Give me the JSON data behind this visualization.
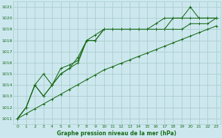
{
  "bg_color": "#cce8ee",
  "grid_color": "#aacccc",
  "line_color": "#1a6b1a",
  "xlabel": "Graphe pression niveau de la mer (hPa)",
  "xlim": [
    -0.5,
    23.5
  ],
  "ylim": [
    1010.5,
    1021.5
  ],
  "yticks": [
    1011,
    1012,
    1013,
    1014,
    1015,
    1016,
    1017,
    1018,
    1019,
    1020,
    1021
  ],
  "xticks": [
    0,
    1,
    2,
    3,
    4,
    5,
    6,
    7,
    8,
    9,
    10,
    11,
    12,
    13,
    14,
    15,
    16,
    17,
    18,
    19,
    20,
    21,
    22,
    23
  ],
  "series": [
    {
      "x": [
        0,
        1,
        2,
        3,
        4,
        5,
        6,
        7,
        8,
        9,
        10,
        11,
        12,
        13,
        14,
        15,
        16,
        17,
        18,
        19,
        20,
        21,
        22,
        23
      ],
      "y": [
        1011,
        1011.43,
        1011.87,
        1012.3,
        1012.74,
        1013.17,
        1013.61,
        1014.04,
        1014.48,
        1014.91,
        1015.35,
        1015.65,
        1015.96,
        1016.26,
        1016.57,
        1016.87,
        1017.17,
        1017.48,
        1017.78,
        1018.09,
        1018.39,
        1018.7,
        1019.0,
        1019.3
      ]
    },
    {
      "x": [
        0,
        1,
        2,
        3,
        4,
        5,
        6,
        7,
        8,
        9,
        10,
        11,
        12,
        13,
        14,
        15,
        16,
        17,
        18,
        19,
        20,
        21,
        22,
        23
      ],
      "y": [
        1011,
        1012,
        1014,
        1013,
        1014,
        1015,
        1015.5,
        1016,
        1018,
        1018,
        1019,
        1019,
        1019,
        1019,
        1019,
        1019,
        1019,
        1019,
        1020,
        1020,
        1021,
        1020,
        1020,
        1020
      ]
    },
    {
      "x": [
        0,
        1,
        2,
        3,
        4,
        5,
        6,
        7,
        8,
        9,
        10,
        11,
        12,
        13,
        14,
        15,
        16,
        17,
        18,
        19,
        20,
        21,
        22,
        23
      ],
      "y": [
        1011,
        1012,
        1014,
        1015,
        1014,
        1015.5,
        1015.8,
        1016.2,
        1018,
        1018.5,
        1019,
        1019,
        1019,
        1019,
        1019,
        1019,
        1019.5,
        1020,
        1020,
        1020,
        1020,
        1020,
        1020,
        1020
      ]
    },
    {
      "x": [
        0,
        1,
        2,
        3,
        4,
        5,
        6,
        7,
        8,
        9,
        10,
        11,
        12,
        13,
        14,
        15,
        16,
        17,
        18,
        19,
        20,
        21,
        22,
        23
      ],
      "y": [
        1011,
        1012,
        1014,
        1013,
        1014,
        1015,
        1015.5,
        1016.5,
        1018,
        1018,
        1019,
        1019,
        1019,
        1019,
        1019,
        1019,
        1019,
        1019,
        1019,
        1019,
        1019.5,
        1019.5,
        1019.5,
        1020
      ]
    }
  ]
}
